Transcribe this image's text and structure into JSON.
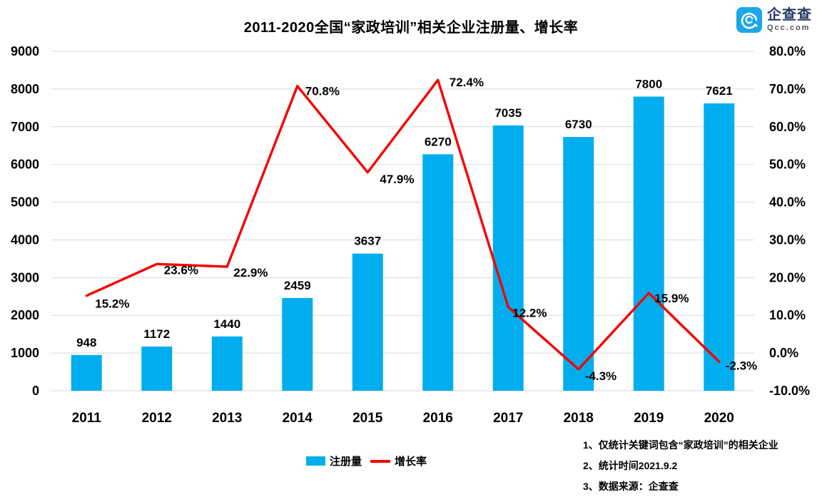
{
  "title": "2011-2020全国“家政培训”相关企业注册量、增长率",
  "logo": {
    "name": "企查查",
    "domain": "Qcc.com",
    "icon_color": "#1ba7e9"
  },
  "chart_data": {
    "type": "bar+line combo",
    "title": "2011-2020全国“家政培训”相关企业注册量、增长率",
    "categories": [
      "2011",
      "2012",
      "2013",
      "2014",
      "2015",
      "2016",
      "2017",
      "2018",
      "2019",
      "2020"
    ],
    "series": [
      {
        "name": "注册量",
        "type": "bar",
        "axis": "left",
        "color": "#00aeef",
        "values": [
          948,
          1172,
          1440,
          2459,
          3637,
          6270,
          7035,
          6730,
          7800,
          7621
        ],
        "labels": [
          "948",
          "1172",
          "1440",
          "2459",
          "3637",
          "6270",
          "7035",
          "6730",
          "7800",
          "7621"
        ]
      },
      {
        "name": "增长率",
        "type": "line",
        "axis": "right",
        "color": "#f40000",
        "values": [
          15.2,
          23.6,
          22.9,
          70.8,
          47.9,
          72.4,
          12.2,
          -4.3,
          15.9,
          -2.3
        ],
        "labels": [
          "15.2%",
          "23.6%",
          "22.9%",
          "70.8%",
          "47.9%",
          "72.4%",
          "12.2%",
          "-4.3%",
          "15.9%",
          "-2.3%"
        ]
      }
    ],
    "left_axis": {
      "min": 0,
      "max": 9000,
      "step": 1000,
      "ticks": [
        "9000",
        "8000",
        "7000",
        "6000",
        "5000",
        "4000",
        "3000",
        "2000",
        "1000",
        "0"
      ]
    },
    "right_axis": {
      "min": -10,
      "max": 80,
      "step": 10,
      "ticks": [
        "80.0%",
        "70.0%",
        "60.0%",
        "50.0%",
        "40.0%",
        "30.0%",
        "20.0%",
        "10.0%",
        "0.0%",
        "-10.0%"
      ]
    },
    "grid": true,
    "grid_color": "#d9d9d9",
    "legend_position": "bottom"
  },
  "footnotes": [
    "1、仅统计关键词包含“家政培训”的相关企业",
    "2、统计时间2021.9.2",
    "3、数据来源：企查查"
  ]
}
